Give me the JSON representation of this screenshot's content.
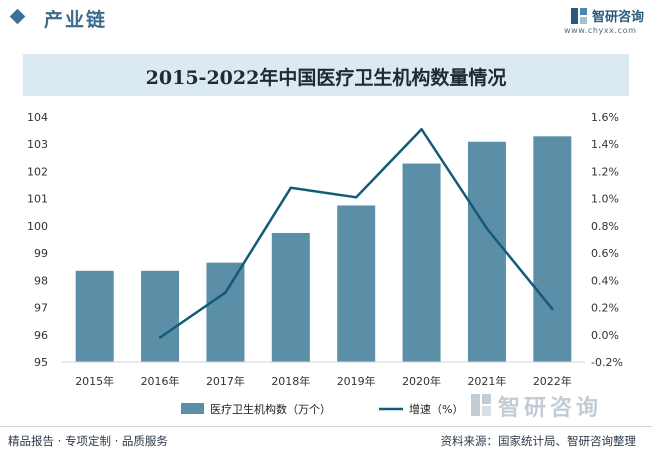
{
  "header": {
    "section_label": "产业链",
    "brand_name": "智研咨询",
    "brand_url": "www.chyxx.com"
  },
  "colors": {
    "bar": "#5b8fa8",
    "line": "#135b78",
    "title_bar": "#dbe9f3",
    "header_accent": "#3b6f93"
  },
  "chart_data": {
    "type": "bar",
    "title": "2015-2022年中国医疗卫生机构数量情况",
    "categories": [
      "2015年",
      "2016年",
      "2017年",
      "2018年",
      "2019年",
      "2020年",
      "2021年",
      "2022年"
    ],
    "series": [
      {
        "name": "医疗卫生机构数（万个）",
        "type": "bar",
        "axis": "left",
        "values": [
          98.35,
          98.35,
          98.65,
          99.74,
          100.75,
          102.29,
          103.09,
          103.29
        ]
      },
      {
        "name": "增速（%）",
        "type": "line",
        "axis": "right",
        "values": [
          null,
          -0.02,
          0.31,
          1.08,
          1.01,
          1.51,
          0.78,
          0.19
        ]
      }
    ],
    "y_left": {
      "ylim": [
        95,
        104
      ],
      "ticks": [
        "95",
        "96",
        "97",
        "98",
        "99",
        "100",
        "101",
        "102",
        "103",
        "104"
      ]
    },
    "y_right": {
      "ylim": [
        -0.2,
        1.6
      ],
      "ticks": [
        "-0.2%",
        "0.0%",
        "0.2%",
        "0.4%",
        "0.6%",
        "0.8%",
        "1.0%",
        "1.2%",
        "1.4%",
        "1.6%"
      ]
    },
    "grid": false,
    "legend_position": "bottom"
  },
  "footer": {
    "left": "精品报告 · 专项定制 · 品质服务",
    "right": "资料来源：国家统计局、智研咨询整理"
  },
  "source_brand": "智研咨询"
}
